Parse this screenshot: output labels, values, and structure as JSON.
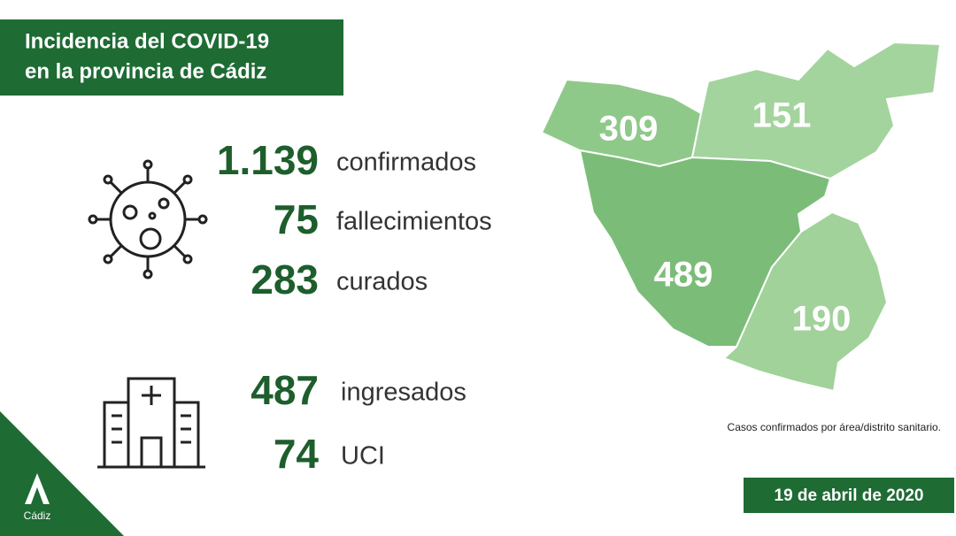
{
  "header": {
    "title_lines": [
      "Incidencia del COVID-19",
      "en la provincia de Cádiz"
    ]
  },
  "cases": [
    {
      "number": "1.139",
      "label": "confirmados"
    },
    {
      "number": "75",
      "label": "fallecimientos"
    },
    {
      "number": "283",
      "label": "curados"
    }
  ],
  "hospital": [
    {
      "number": "487",
      "label": "ingresados"
    },
    {
      "number": "74",
      "label": "UCI"
    }
  ],
  "map": {
    "areas": [
      "309",
      "151",
      "489",
      "190"
    ],
    "caption": "Casos confirmados por área/distrito sanitario."
  },
  "date": "19 de abril de 2020",
  "logo": "Cádiz"
}
